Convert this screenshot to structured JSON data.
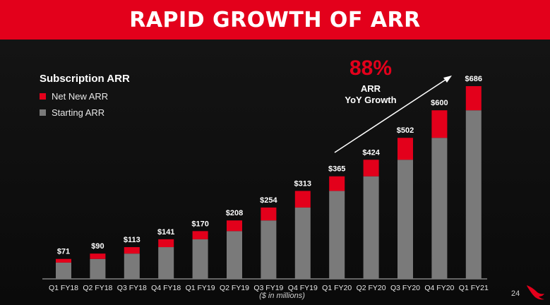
{
  "slide": {
    "title": "RAPID GROWTH OF ARR",
    "page_number": "24",
    "units_note": "($ in millions)"
  },
  "legend": {
    "title": "Subscription ARR",
    "items": [
      {
        "label": "Net New ARR",
        "color": "#e3001b"
      },
      {
        "label": "Starting ARR",
        "color": "#7a7a7a"
      }
    ]
  },
  "callout": {
    "value": "88%",
    "label_line1": "ARR",
    "label_line2": "YoY Growth"
  },
  "logo": {
    "icon": "falcon-logo-icon"
  },
  "chart_data": {
    "type": "bar",
    "stacked": true,
    "categories": [
      "Q1 FY18",
      "Q2 FY18",
      "Q3 FY18",
      "Q4 FY18",
      "Q1 FY19",
      "Q2 FY19",
      "Q3 FY19",
      "Q4 FY19",
      "Q1 FY20",
      "Q2 FY20",
      "Q3 FY20",
      "Q4 FY20",
      "Q1 FY21"
    ],
    "series": [
      {
        "name": "Starting ARR",
        "color": "#7a7a7a",
        "values": [
          58,
          71,
          90,
          113,
          141,
          170,
          208,
          254,
          313,
          365,
          424,
          502,
          600
        ]
      },
      {
        "name": "Net New ARR",
        "color": "#e3001b",
        "values": [
          13,
          19,
          23,
          28,
          29,
          38,
          46,
          59,
          52,
          59,
          78,
          98,
          86
        ]
      }
    ],
    "totals": [
      71,
      90,
      113,
      141,
      170,
      208,
      254,
      313,
      365,
      424,
      502,
      600,
      686
    ],
    "total_labels": [
      "$71",
      "$90",
      "$113",
      "$141",
      "$170",
      "$208",
      "$254",
      "$313",
      "$365",
      "$424",
      "$502",
      "$600",
      "$686"
    ],
    "ylim": [
      0,
      686
    ],
    "grid": false,
    "legend_position": "top-left",
    "colors": {
      "starting": "#7a7a7a",
      "net_new": "#e3001b",
      "axis": "#bdbdbd"
    }
  }
}
